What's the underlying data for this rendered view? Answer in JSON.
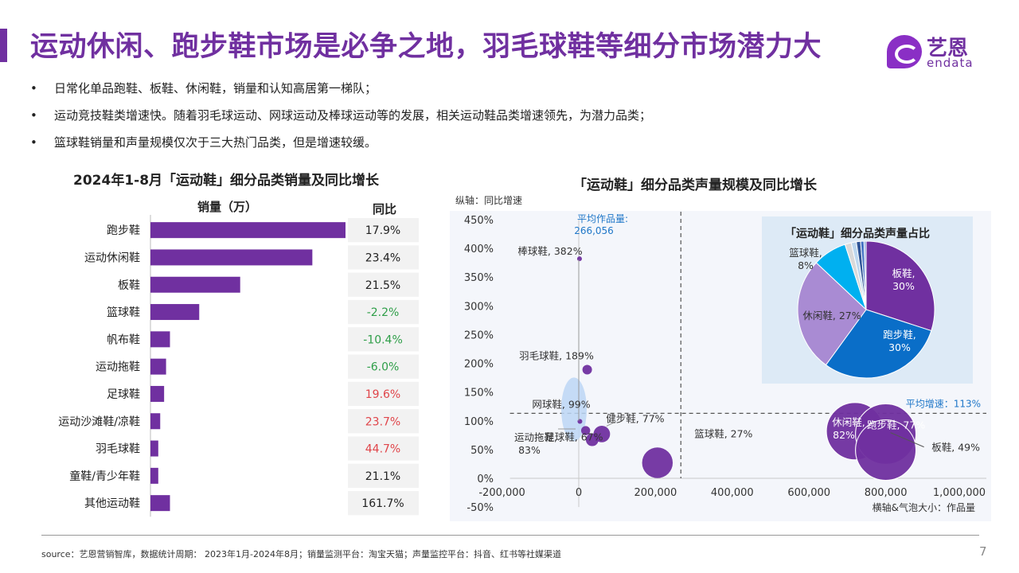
{
  "title": "运动休闲、跑步鞋市场是必争之地，羽毛球鞋等细分市场潜力大",
  "logo": {
    "cn": "艺恩",
    "en": "endata"
  },
  "bullets": [
    "日常化单品跑鞋、板鞋、休闲鞋，销量和认知高居第一梯队；",
    "运动竞技鞋类增速快。随着羽毛球运动、网球运动及棒球运动等的发展，相关运动鞋品类增速领先，为潜力品类；",
    "篮球鞋销量和声量规模仅次于三大热门品类，但是增速较缓。"
  ],
  "colors": {
    "purple": "#7030a0",
    "green": "#2e9e48",
    "red": "#e0454a",
    "light_purple": "#a98bd3",
    "blue": "#0a6ec8",
    "cyan": "#00b0f0",
    "pale_bg": "#ddeaf6"
  },
  "footer": {
    "source": "source：艺恩营销智库，数据统计周期： 2023年1月-2024年8月；销量监测平台：淘宝天猫；声量监控平台：抖音、红书等社媒渠道",
    "page": "7"
  },
  "chart_data": [
    {
      "type": "bar",
      "orientation": "horizontal",
      "title": "2024年1-8月「运动鞋」细分品类销量及同比增长",
      "value_header": "销量（万）",
      "yoy_header": "同比",
      "categories": [
        "跑步鞋",
        "运动休闲鞋",
        "板鞋",
        "篮球鞋",
        "帆布鞋",
        "运动拖鞋",
        "足球鞋",
        "运动沙滩鞋/凉鞋",
        "羽毛球鞋",
        "童鞋/青少年鞋",
        "其他运动鞋"
      ],
      "values": [
        100,
        83,
        46,
        25,
        10,
        8,
        7,
        5,
        4,
        4,
        10
      ],
      "yoy": [
        "17.9%",
        "23.4%",
        "21.5%",
        "-2.2%",
        "-10.4%",
        "-6.0%",
        "19.6%",
        "23.7%",
        "44.7%",
        "21.1%",
        "161.7%"
      ],
      "yoy_colors": [
        "#222",
        "#222",
        "#222",
        "#2e9e48",
        "#2e9e48",
        "#2e9e48",
        "#e0454a",
        "#e0454a",
        "#e0454a",
        "#222",
        "#222"
      ]
    },
    {
      "type": "scatter",
      "subtype": "bubble",
      "title": "「运动鞋」细分品类声量规模及同比增长",
      "ylabel": "纵轴：同比增速",
      "xlabel": "横轴&气泡大小：作品量",
      "xlim": [
        -200000,
        1000000
      ],
      "ylim": [
        -50,
        450
      ],
      "xticks": [
        "-200,000",
        "0",
        "200,000",
        "400,000",
        "600,000",
        "800,000",
        "1,000,000"
      ],
      "yticks": [
        "-50%",
        "0%",
        "50%",
        "100%",
        "150%",
        "200%",
        "250%",
        "300%",
        "350%",
        "400%",
        "450%"
      ],
      "avg_x_label": "平均作品量:",
      "avg_x_value": "266,056",
      "avg_x": 266056,
      "avg_y_label": "平均增速：113%",
      "avg_y": 113,
      "points": [
        {
          "name": "棒球鞋, 382%",
          "x": 2000,
          "y": 382,
          "size": 1000
        },
        {
          "name": "羽毛球鞋, 189%",
          "x": 22000,
          "y": 189,
          "size": 22000
        },
        {
          "name": "网球鞋, 99%",
          "x": 3000,
          "y": 99,
          "size": 3000
        },
        {
          "name": "运动拖鞋,",
          "name2": "83%",
          "x": 18000,
          "y": 83,
          "size": 18000
        },
        {
          "name": "健步鞋, 77%",
          "x": 60000,
          "y": 77,
          "size": 60000
        },
        {
          "name": "足球鞋, 67%",
          "x": 35000,
          "y": 67,
          "size": 35000
        },
        {
          "name": "篮球鞋, 27%",
          "x": 205000,
          "y": 27,
          "size": 205000
        },
        {
          "name": "休闲鞋,",
          "name2": "82%",
          "x": 720000,
          "y": 82,
          "size": 720000
        },
        {
          "name": "跑步鞋, 77%",
          "x": 800000,
          "y": 77,
          "size": 800000
        },
        {
          "name": "板鞋, 49%",
          "x": 800000,
          "y": 49,
          "size": 800000
        }
      ],
      "inset_pie": {
        "type": "pie",
        "title": "「运动鞋」细分品类声量占比",
        "slices": [
          {
            "label": "板鞋,",
            "label2": "30%",
            "value": 30,
            "color": "#7030a0"
          },
          {
            "label": "跑步鞋,",
            "label2": "30%",
            "value": 30,
            "color": "#0a6ec8"
          },
          {
            "label": "休闲鞋, 27%",
            "value": 27,
            "color": "#a98bd3"
          },
          {
            "label": "篮球鞋,",
            "label2": "8%",
            "value": 8,
            "color": "#00b0f0"
          },
          {
            "label": "",
            "value": 1.5,
            "color": "#d9d9d9"
          },
          {
            "label": "",
            "value": 1.2,
            "color": "#bdd7ee"
          },
          {
            "label": "",
            "value": 1.0,
            "color": "#2f5597"
          },
          {
            "label": "",
            "value": 0.8,
            "color": "#4472c4"
          },
          {
            "label": "",
            "value": 0.5,
            "color": "#8faadc"
          }
        ]
      }
    }
  ]
}
